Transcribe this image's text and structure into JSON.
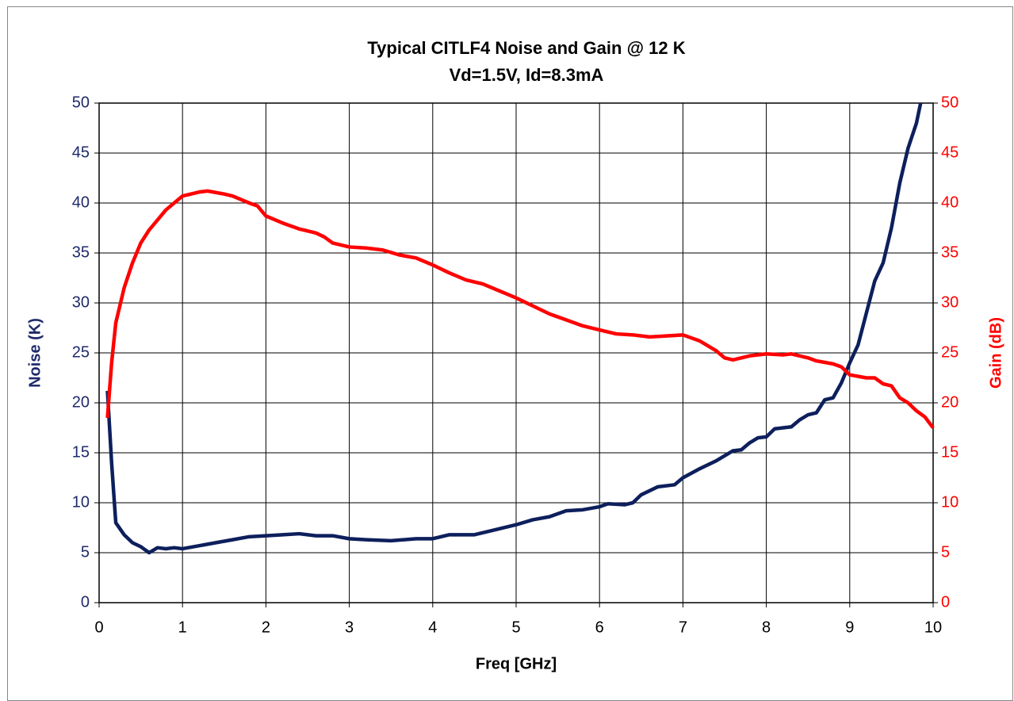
{
  "chart_data": {
    "type": "line",
    "title": "Typical CITLF4 Noise and Gain @ 12 K",
    "subtitle": "Vd=1.5V, Id=8.3mA",
    "x_label": "Freq [GHz]",
    "y_label": "Noise (K)",
    "y2_label": "Gain (dB)",
    "xlim": [
      0,
      10
    ],
    "xticks": [
      0,
      1,
      2,
      3,
      4,
      5,
      6,
      7,
      8,
      9,
      10
    ],
    "ylim": [
      0,
      50
    ],
    "yticks": [
      0,
      5,
      10,
      15,
      20,
      25,
      30,
      35,
      40,
      45,
      50
    ],
    "y2lim": [
      0,
      50
    ],
    "y2ticks": [
      0,
      5,
      10,
      15,
      20,
      25,
      30,
      35,
      40,
      45,
      50
    ],
    "grid": true,
    "y_color": "#1f2a6b",
    "y2_color": "#ff0000",
    "series": [
      {
        "name": "Noise",
        "color": "#0d1f5c",
        "axis": "y",
        "x": [
          0.1,
          0.15,
          0.2,
          0.3,
          0.4,
          0.5,
          0.6,
          0.7,
          0.8,
          0.9,
          1.0,
          1.2,
          1.4,
          1.6,
          1.8,
          2.0,
          2.2,
          2.4,
          2.6,
          2.8,
          3.0,
          3.2,
          3.5,
          3.8,
          4.0,
          4.2,
          4.5,
          4.7,
          5.0,
          5.2,
          5.4,
          5.6,
          5.8,
          6.0,
          6.1,
          6.3,
          6.4,
          6.5,
          6.7,
          6.9,
          7.0,
          7.2,
          7.4,
          7.6,
          7.7,
          7.8,
          7.9,
          8.0,
          8.1,
          8.3,
          8.4,
          8.5,
          8.6,
          8.7,
          8.8,
          8.9,
          9.0,
          9.1,
          9.2,
          9.3,
          9.4,
          9.5,
          9.6,
          9.7,
          9.8,
          9.85
        ],
        "values": [
          21.2,
          14,
          8,
          6.8,
          6,
          5.6,
          5.0,
          5.5,
          5.4,
          5.5,
          5.4,
          5.7,
          6.0,
          6.3,
          6.6,
          6.7,
          6.8,
          6.9,
          6.7,
          6.7,
          6.4,
          6.3,
          6.2,
          6.4,
          6.4,
          6.8,
          6.8,
          7.2,
          7.8,
          8.3,
          8.6,
          9.2,
          9.3,
          9.6,
          9.9,
          9.8,
          10.0,
          10.8,
          11.6,
          11.8,
          12.5,
          13.4,
          14.2,
          15.2,
          15.3,
          16.0,
          16.5,
          16.6,
          17.4,
          17.6,
          18.3,
          18.8,
          19.0,
          20.3,
          20.5,
          22,
          24,
          25.8,
          29,
          32.2,
          34,
          37.5,
          42,
          45.5,
          48,
          50
        ]
      },
      {
        "name": "Gain",
        "color": "#ff0000",
        "axis": "y2",
        "x": [
          0.1,
          0.15,
          0.2,
          0.3,
          0.4,
          0.5,
          0.6,
          0.8,
          1.0,
          1.2,
          1.3,
          1.5,
          1.6,
          1.8,
          1.9,
          2.0,
          2.2,
          2.4,
          2.6,
          2.7,
          2.8,
          3.0,
          3.2,
          3.4,
          3.6,
          3.8,
          4.0,
          4.2,
          4.4,
          4.6,
          4.8,
          5.0,
          5.2,
          5.4,
          5.6,
          5.8,
          6.0,
          6.2,
          6.4,
          6.6,
          6.8,
          7.0,
          7.2,
          7.4,
          7.5,
          7.6,
          7.8,
          8.0,
          8.2,
          8.3,
          8.5,
          8.6,
          8.8,
          8.9,
          9.0,
          9.2,
          9.3,
          9.4,
          9.5,
          9.6,
          9.7,
          9.8,
          9.9,
          10.0
        ],
        "values": [
          18.5,
          24,
          28,
          31.5,
          34,
          36,
          37.3,
          39.3,
          40.7,
          41.1,
          41.2,
          40.9,
          40.7,
          40.0,
          39.7,
          38.7,
          38.0,
          37.4,
          37.0,
          36.6,
          36.0,
          35.6,
          35.5,
          35.3,
          34.8,
          34.5,
          33.8,
          33.0,
          32.3,
          31.9,
          31.2,
          30.5,
          29.7,
          28.9,
          28.3,
          27.7,
          27.3,
          26.9,
          26.8,
          26.6,
          26.7,
          26.8,
          26.2,
          25.2,
          24.5,
          24.3,
          24.7,
          24.9,
          24.8,
          24.9,
          24.5,
          24.2,
          23.9,
          23.6,
          22.8,
          22.5,
          22.5,
          21.9,
          21.7,
          20.5,
          20.0,
          19.2,
          18.6,
          17.5
        ]
      }
    ]
  }
}
